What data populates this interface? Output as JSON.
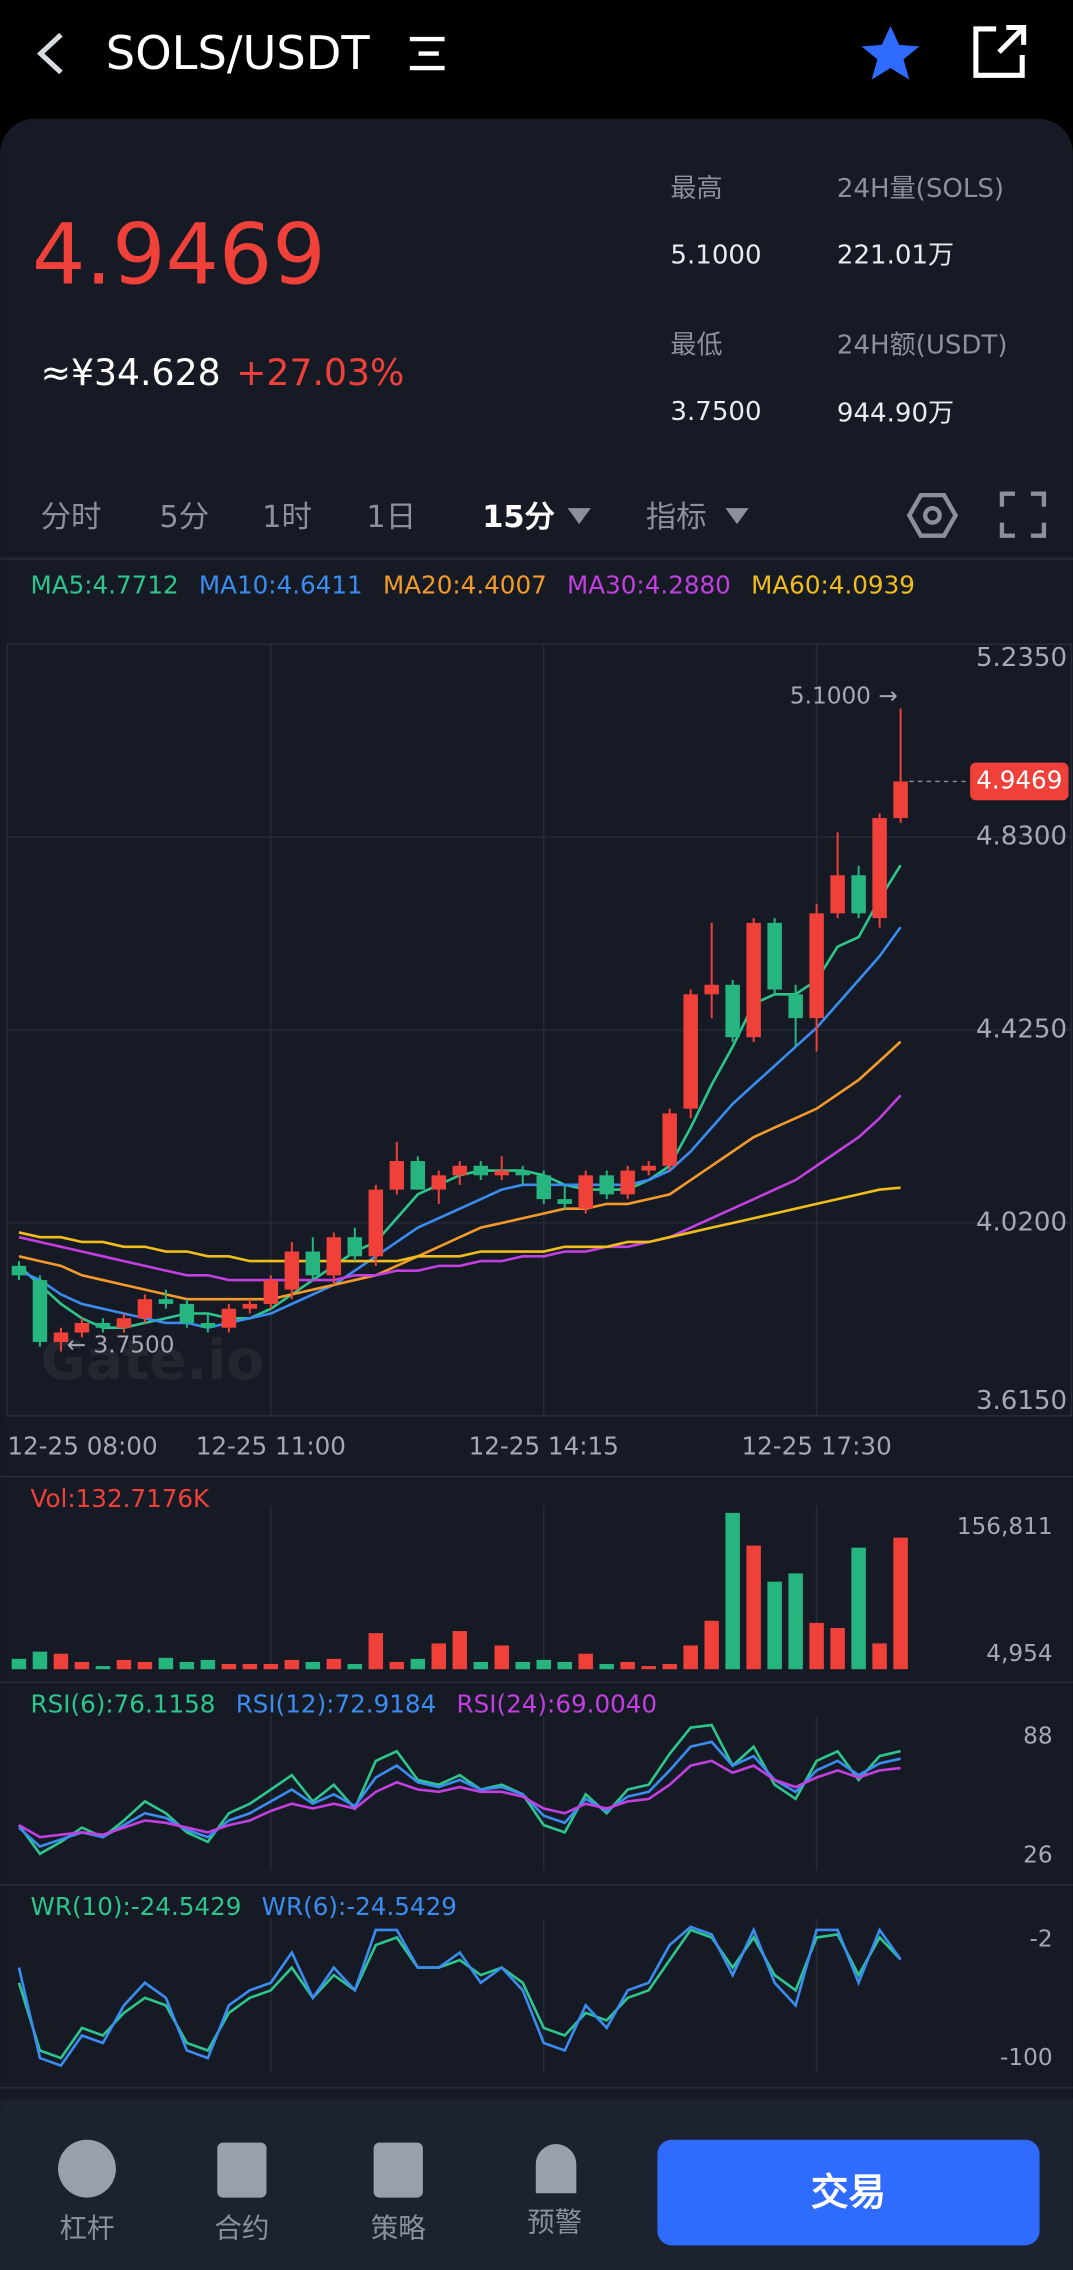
{
  "header": {
    "title": "SOLS/USDT"
  },
  "price": {
    "last": "4.9469",
    "cny": "≈¥34.628",
    "change": "+27.03%"
  },
  "stats": {
    "high_label": "最高",
    "high": "5.1000",
    "volume_label": "24H量(SOLS)",
    "volume": "221.01万",
    "low_label": "最低",
    "low": "3.7500",
    "amount_label": "24H额(USDT)",
    "amount": "944.90万"
  },
  "tabs": [
    "分时",
    "5分",
    "1时",
    "1日",
    "15分",
    "指标"
  ],
  "nav": [
    "杠杆",
    "合约",
    "策略",
    "预警"
  ],
  "trade_button": "交易",
  "chart_data": [
    {
      "type": "candlestick",
      "watermark": "Gate.io",
      "categories": [
        "12-25 08:00",
        null,
        null,
        null,
        null,
        null,
        null,
        null,
        null,
        null,
        null,
        null,
        "12-25 11:00",
        null,
        null,
        null,
        null,
        null,
        null,
        null,
        null,
        null,
        null,
        null,
        null,
        "12-25 14:15",
        null,
        null,
        null,
        null,
        null,
        null,
        null,
        null,
        null,
        null,
        null,
        null,
        "12-25 17:30",
        null,
        null,
        null,
        null
      ],
      "open": [
        3.93,
        3.9,
        3.77,
        3.79,
        3.81,
        3.8,
        3.82,
        3.86,
        3.85,
        3.81,
        3.8,
        3.84,
        3.85,
        3.88,
        3.96,
        3.91,
        3.99,
        3.95,
        4.09,
        4.15,
        4.09,
        4.12,
        4.14,
        4.12,
        4.13,
        4.12,
        4.07,
        4.05,
        4.12,
        4.08,
        4.13,
        4.14,
        4.26,
        4.5,
        4.52,
        4.41,
        4.65,
        4.5,
        4.45,
        4.67,
        4.75,
        4.66,
        4.87
      ],
      "high": [
        3.94,
        3.91,
        3.8,
        3.82,
        3.82,
        3.83,
        3.87,
        3.88,
        3.86,
        3.83,
        3.85,
        3.86,
        3.91,
        3.98,
        3.99,
        4.0,
        4.01,
        4.1,
        4.19,
        4.16,
        4.13,
        4.15,
        4.15,
        4.16,
        4.14,
        4.13,
        4.1,
        4.13,
        4.13,
        4.14,
        4.15,
        4.26,
        4.51,
        4.65,
        4.53,
        4.66,
        4.66,
        4.52,
        4.69,
        4.84,
        4.77,
        4.88,
        5.1
      ],
      "low": [
        3.9,
        3.76,
        3.75,
        3.78,
        3.79,
        3.79,
        3.81,
        3.84,
        3.8,
        3.79,
        3.79,
        3.83,
        3.84,
        3.86,
        3.9,
        3.89,
        3.94,
        3.93,
        4.08,
        4.09,
        4.06,
        4.1,
        4.11,
        4.11,
        4.1,
        4.06,
        4.05,
        4.04,
        4.07,
        4.07,
        4.12,
        4.13,
        4.24,
        4.45,
        4.4,
        4.4,
        4.5,
        4.39,
        4.38,
        4.66,
        4.66,
        4.64,
        4.86
      ],
      "close": [
        3.91,
        3.77,
        3.79,
        3.81,
        3.8,
        3.82,
        3.86,
        3.85,
        3.81,
        3.8,
        3.84,
        3.85,
        3.9,
        3.96,
        3.91,
        3.99,
        3.95,
        4.09,
        4.15,
        4.09,
        4.12,
        4.14,
        4.12,
        4.13,
        4.12,
        4.07,
        4.06,
        4.12,
        4.08,
        4.13,
        4.14,
        4.25,
        4.5,
        4.52,
        4.41,
        4.65,
        4.51,
        4.45,
        4.67,
        4.75,
        4.67,
        4.87,
        4.9469
      ],
      "up_color": "#f0403a",
      "down_color": "#26b57f",
      "ylim": [
        3.615,
        5.235
      ],
      "yticks": [
        {
          "value": 5.235,
          "label": "5.2350"
        },
        {
          "value": 4.83,
          "label": "4.8300"
        },
        {
          "value": 4.425,
          "label": "4.4250"
        },
        {
          "value": 4.02,
          "label": "4.0200"
        },
        {
          "value": 3.615,
          "label": "3.6150"
        }
      ],
      "high_label": "5.1000 →",
      "low_label": "← 3.7500",
      "series": [
        {
          "name": "MA5:4.7712",
          "color": "#2ec58d",
          "values": [
            3.93,
            3.89,
            3.85,
            3.82,
            3.8,
            3.8,
            3.81,
            3.82,
            3.83,
            3.83,
            3.82,
            3.82,
            3.84,
            3.87,
            3.9,
            3.93,
            3.96,
            3.98,
            4.03,
            4.08,
            4.1,
            4.12,
            4.13,
            4.13,
            4.13,
            4.12,
            4.1,
            4.09,
            4.09,
            4.09,
            4.11,
            4.14,
            4.22,
            4.31,
            4.39,
            4.48,
            4.5,
            4.5,
            4.53,
            4.6,
            4.62,
            4.7,
            4.7712
          ]
        },
        {
          "name": "MA10:4.6411",
          "color": "#3b8cf0",
          "values": [
            3.92,
            3.9,
            3.87,
            3.85,
            3.84,
            3.83,
            3.82,
            3.81,
            3.81,
            3.8,
            3.81,
            3.82,
            3.83,
            3.85,
            3.87,
            3.89,
            3.92,
            3.95,
            3.98,
            4.01,
            4.03,
            4.05,
            4.07,
            4.09,
            4.1,
            4.1,
            4.1,
            4.1,
            4.1,
            4.1,
            4.11,
            4.13,
            4.17,
            4.22,
            4.27,
            4.31,
            4.35,
            4.39,
            4.43,
            4.48,
            4.53,
            4.58,
            4.6411
          ]
        },
        {
          "name": "MA20:4.4007",
          "color": "#f39a2b",
          "values": [
            3.95,
            3.94,
            3.93,
            3.91,
            3.9,
            3.89,
            3.88,
            3.87,
            3.86,
            3.86,
            3.86,
            3.86,
            3.86,
            3.87,
            3.88,
            3.89,
            3.9,
            3.91,
            3.93,
            3.95,
            3.97,
            3.99,
            4.01,
            4.02,
            4.03,
            4.04,
            4.05,
            4.05,
            4.06,
            4.06,
            4.07,
            4.08,
            4.11,
            4.14,
            4.17,
            4.2,
            4.22,
            4.24,
            4.26,
            4.29,
            4.32,
            4.36,
            4.4007
          ]
        },
        {
          "name": "MA30:4.2880",
          "color": "#c23fe0",
          "values": [
            3.99,
            3.98,
            3.97,
            3.96,
            3.95,
            3.94,
            3.93,
            3.92,
            3.91,
            3.91,
            3.9,
            3.9,
            3.9,
            3.9,
            3.9,
            3.9,
            3.91,
            3.91,
            3.92,
            3.92,
            3.93,
            3.93,
            3.94,
            3.94,
            3.95,
            3.95,
            3.96,
            3.96,
            3.97,
            3.97,
            3.98,
            3.99,
            4.01,
            4.03,
            4.05,
            4.07,
            4.09,
            4.11,
            4.14,
            4.17,
            4.2,
            4.24,
            4.288
          ]
        },
        {
          "name": "MA60:4.0939",
          "color": "#f1bd1c",
          "values": [
            4.0,
            3.99,
            3.99,
            3.98,
            3.98,
            3.97,
            3.97,
            3.96,
            3.96,
            3.95,
            3.95,
            3.94,
            3.94,
            3.94,
            3.94,
            3.94,
            3.94,
            3.94,
            3.94,
            3.95,
            3.95,
            3.95,
            3.96,
            3.96,
            3.96,
            3.96,
            3.97,
            3.97,
            3.97,
            3.98,
            3.98,
            3.99,
            4.0,
            4.01,
            4.02,
            4.03,
            4.04,
            4.05,
            4.06,
            4.07,
            4.08,
            4.09,
            4.0939
          ]
        }
      ]
    },
    {
      "type": "bar",
      "label": "Vol:132.7176K",
      "values": [
        15000,
        22000,
        20000,
        12000,
        8000,
        14000,
        12000,
        16000,
        12000,
        14000,
        10000,
        10000,
        10000,
        14000,
        12000,
        15000,
        10000,
        40000,
        12000,
        15000,
        30000,
        42000,
        12000,
        28000,
        12000,
        14000,
        12000,
        20000,
        10000,
        12000,
        8000,
        10000,
        28000,
        52000,
        156811,
        125000,
        90000,
        98000,
        50000,
        45000,
        123000,
        30000,
        132717.6
      ],
      "ylim": [
        4954,
        156811
      ],
      "yticks": [
        {
          "value": 156811,
          "label": "156,811"
        },
        {
          "value": 4954,
          "label": "4,954"
        }
      ]
    },
    {
      "type": "line",
      "ylim": [
        26,
        88
      ],
      "yticks": [
        88,
        26
      ],
      "series": [
        {
          "name": "RSI(6):76.1158",
          "color": "#2ec58d",
          "values": [
            45,
            33,
            38,
            44,
            40,
            47,
            55,
            50,
            42,
            38,
            50,
            54,
            60,
            66,
            55,
            62,
            52,
            72,
            76,
            64,
            62,
            66,
            60,
            62,
            58,
            45,
            42,
            58,
            50,
            60,
            62,
            75,
            86,
            87,
            70,
            78,
            62,
            56,
            72,
            76,
            64,
            74,
            76.1158
          ]
        },
        {
          "name": "RSI(12):72.9184",
          "color": "#3b8cf0",
          "values": [
            44,
            36,
            39,
            42,
            40,
            45,
            50,
            48,
            43,
            40,
            47,
            50,
            55,
            60,
            54,
            58,
            53,
            65,
            70,
            63,
            61,
            64,
            60,
            61,
            58,
            49,
            46,
            56,
            51,
            57,
            59,
            68,
            78,
            80,
            70,
            74,
            64,
            59,
            68,
            72,
            66,
            71,
            72.9184
          ]
        },
        {
          "name": "RSI(24):69.0040",
          "color": "#c23fe0",
          "values": [
            45,
            40,
            41,
            42,
            41,
            44,
            47,
            46,
            44,
            42,
            45,
            47,
            51,
            54,
            52,
            54,
            52,
            59,
            63,
            60,
            59,
            61,
            59,
            59,
            57,
            52,
            50,
            54,
            52,
            55,
            56,
            62,
            70,
            72,
            67,
            70,
            64,
            61,
            65,
            68,
            65,
            68,
            69.004
          ]
        }
      ]
    },
    {
      "type": "line",
      "ylim": [
        -100,
        -2
      ],
      "yticks": [
        -2,
        -100
      ],
      "series": [
        {
          "name": "WR(10):-24.5429",
          "color": "#2ec58d",
          "values": [
            -40,
            -85,
            -90,
            -70,
            -75,
            -60,
            -50,
            -55,
            -80,
            -85,
            -60,
            -50,
            -45,
            -30,
            -50,
            -35,
            -45,
            -15,
            -10,
            -30,
            -30,
            -25,
            -35,
            -30,
            -40,
            -70,
            -75,
            -60,
            -65,
            -50,
            -45,
            -25,
            -5,
            -10,
            -30,
            -10,
            -35,
            -45,
            -10,
            -8,
            -35,
            -10,
            -24.5429
          ]
        },
        {
          "name": "WR(6):-24.5429",
          "color": "#3b8cf0",
          "values": [
            -30,
            -90,
            -95,
            -75,
            -80,
            -55,
            -40,
            -50,
            -85,
            -90,
            -55,
            -45,
            -40,
            -20,
            -50,
            -30,
            -45,
            -5,
            -5,
            -30,
            -30,
            -20,
            -40,
            -30,
            -45,
            -80,
            -85,
            -55,
            -70,
            -45,
            -40,
            -15,
            -3,
            -8,
            -35,
            -5,
            -40,
            -55,
            -5,
            -5,
            -40,
            -5,
            -24.5429
          ]
        }
      ]
    }
  ]
}
